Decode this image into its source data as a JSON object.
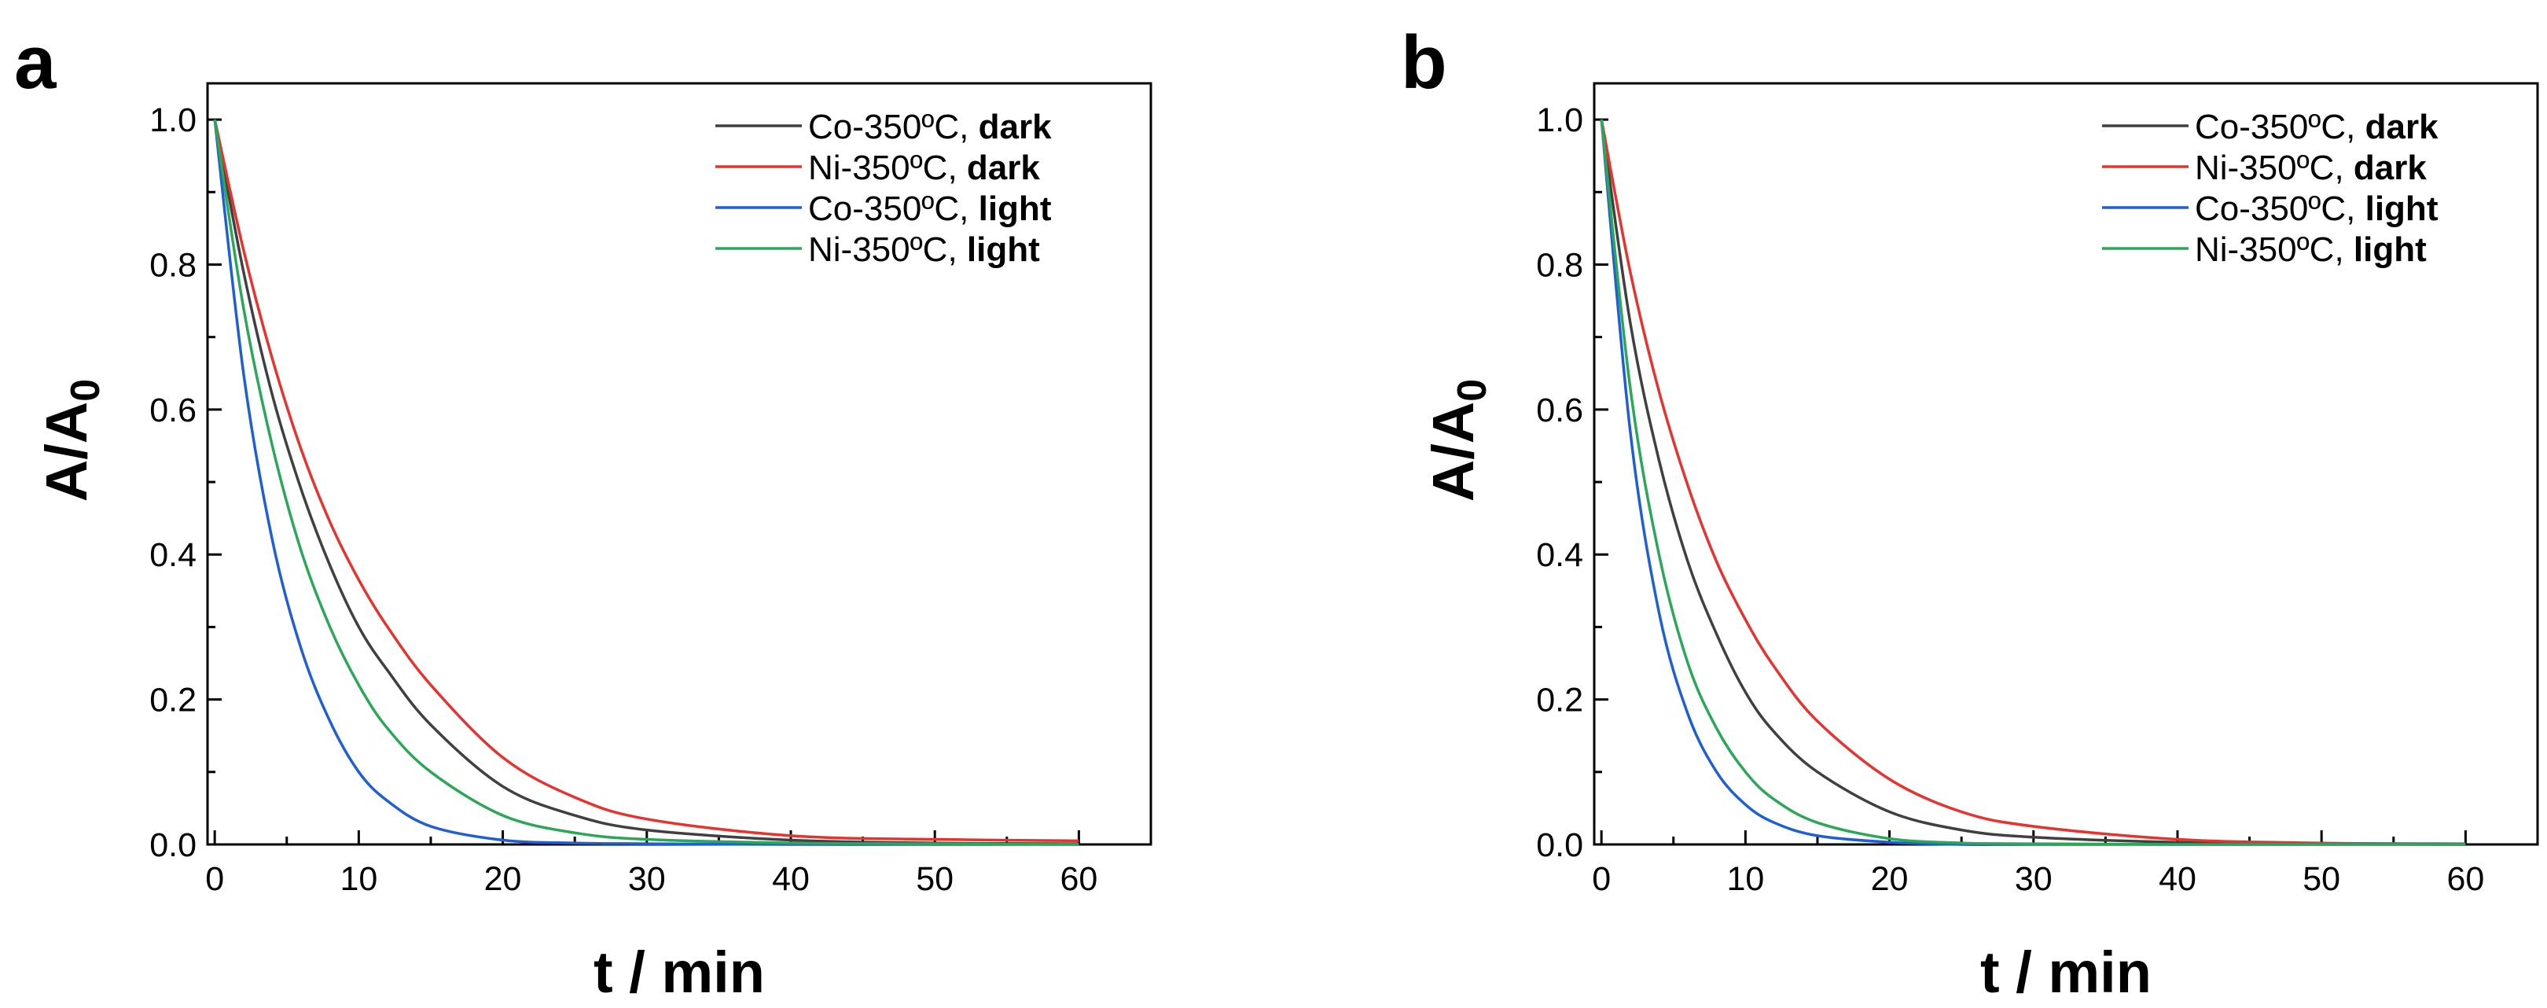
{
  "chart_data": [
    {
      "panel": "a",
      "type": "line",
      "xlabel": "t / min",
      "ylabel": "A/A0",
      "ylabel_main": "A/A",
      "ylabel_sub": "0",
      "xlim": [
        -0.5,
        65
      ],
      "ylim": [
        0,
        1.05
      ],
      "xticks": [
        0,
        10,
        20,
        30,
        40,
        50,
        60
      ],
      "yticks": [
        0.0,
        0.2,
        0.4,
        0.6,
        0.8,
        1.0
      ],
      "xtick_labels": [
        "0",
        "10",
        "20",
        "30",
        "40",
        "50",
        "60"
      ],
      "ytick_labels": [
        "0.0",
        "0.2",
        "0.4",
        "0.6",
        "0.8",
        "1.0"
      ],
      "legend_position": "top-right",
      "series": [
        {
          "name": "Co-350ºC, dark",
          "label_main": "Co-350ºC, ",
          "label_bold": "dark",
          "color": "#404040",
          "x": [
            0,
            2,
            4,
            6,
            8,
            10,
            12,
            15,
            20,
            25,
            30,
            40,
            50,
            60
          ],
          "y": [
            1.0,
            0.79,
            0.62,
            0.49,
            0.385,
            0.3,
            0.24,
            0.165,
            0.08,
            0.04,
            0.02,
            0.006,
            0.002,
            0.001
          ]
        },
        {
          "name": "Ni-350ºC, dark",
          "label_main": "Ni-350ºC, ",
          "label_bold": "dark",
          "color": "#e8322d",
          "x": [
            0,
            2,
            4,
            6,
            8,
            10,
            12,
            15,
            20,
            25,
            30,
            40,
            50,
            60
          ],
          "y": [
            1.0,
            0.82,
            0.67,
            0.545,
            0.445,
            0.365,
            0.3,
            0.22,
            0.12,
            0.065,
            0.035,
            0.012,
            0.007,
            0.005
          ]
        },
        {
          "name": "Co-350ºC, light",
          "label_main": "Co-350ºC, ",
          "label_bold": "light",
          "color": "#1f5fd4",
          "x": [
            0,
            2,
            4,
            6,
            8,
            10,
            12,
            15,
            20,
            25,
            30,
            40,
            50,
            60
          ],
          "y": [
            1.0,
            0.65,
            0.42,
            0.27,
            0.17,
            0.1,
            0.06,
            0.025,
            0.006,
            0.002,
            0.001,
            0.0,
            0.0,
            0.0
          ]
        },
        {
          "name": "Ni-350ºC, light",
          "label_main": "Ni-350ºC, ",
          "label_bold": "light",
          "color": "#2aa858",
          "x": [
            0,
            2,
            4,
            6,
            8,
            10,
            12,
            15,
            20,
            25,
            30,
            40,
            50,
            60
          ],
          "y": [
            1.0,
            0.74,
            0.55,
            0.405,
            0.3,
            0.22,
            0.16,
            0.1,
            0.04,
            0.016,
            0.007,
            0.002,
            0.001,
            0.0
          ]
        }
      ]
    },
    {
      "panel": "b",
      "type": "line",
      "xlabel": "t / min",
      "ylabel": "A/A0",
      "ylabel_main": "A/A",
      "ylabel_sub": "0",
      "xlim": [
        -0.5,
        65
      ],
      "ylim": [
        0,
        1.05
      ],
      "xticks": [
        0,
        10,
        20,
        30,
        40,
        50,
        60
      ],
      "yticks": [
        0.0,
        0.2,
        0.4,
        0.6,
        0.8,
        1.0
      ],
      "xtick_labels": [
        "0",
        "10",
        "20",
        "30",
        "40",
        "50",
        "60"
      ],
      "ytick_labels": [
        "0.0",
        "0.2",
        "0.4",
        "0.6",
        "0.8",
        "1.0"
      ],
      "legend_position": "top-right",
      "series": [
        {
          "name": "Co-350ºC, dark",
          "label_main": "Co-350ºC, ",
          "label_bold": "dark",
          "color": "#404040",
          "x": [
            0,
            2,
            4,
            6,
            8,
            10,
            12,
            15,
            20,
            25,
            30,
            40,
            50,
            60
          ],
          "y": [
            1.0,
            0.72,
            0.53,
            0.39,
            0.29,
            0.21,
            0.155,
            0.1,
            0.045,
            0.02,
            0.01,
            0.003,
            0.001,
            0.0
          ]
        },
        {
          "name": "Ni-350ºC, dark",
          "label_main": "Ni-350ºC, ",
          "label_bold": "dark",
          "color": "#e8322d",
          "x": [
            0,
            2,
            4,
            6,
            8,
            10,
            12,
            15,
            20,
            25,
            30,
            40,
            50,
            60
          ],
          "y": [
            1.0,
            0.79,
            0.625,
            0.495,
            0.39,
            0.31,
            0.245,
            0.17,
            0.09,
            0.045,
            0.025,
            0.007,
            0.002,
            0.001
          ]
        },
        {
          "name": "Co-350ºC, light",
          "label_main": "Co-350ºC, ",
          "label_bold": "light",
          "color": "#1f5fd4",
          "x": [
            0,
            2,
            4,
            6,
            8,
            10,
            12,
            15,
            20,
            25,
            30,
            40,
            50,
            60
          ],
          "y": [
            1.0,
            0.57,
            0.32,
            0.18,
            0.1,
            0.055,
            0.03,
            0.012,
            0.003,
            0.0,
            0.0,
            0.0,
            0.0,
            0.0
          ]
        },
        {
          "name": "Ni-350ºC, light",
          "label_main": "Ni-350ºC, ",
          "label_bold": "light",
          "color": "#2aa858",
          "x": [
            0,
            2,
            4,
            6,
            8,
            10,
            12,
            15,
            20,
            25,
            30,
            40,
            50,
            60
          ],
          "y": [
            1.0,
            0.63,
            0.4,
            0.25,
            0.16,
            0.1,
            0.062,
            0.03,
            0.008,
            0.002,
            0.001,
            0.0,
            0.0,
            0.0
          ]
        }
      ]
    }
  ]
}
